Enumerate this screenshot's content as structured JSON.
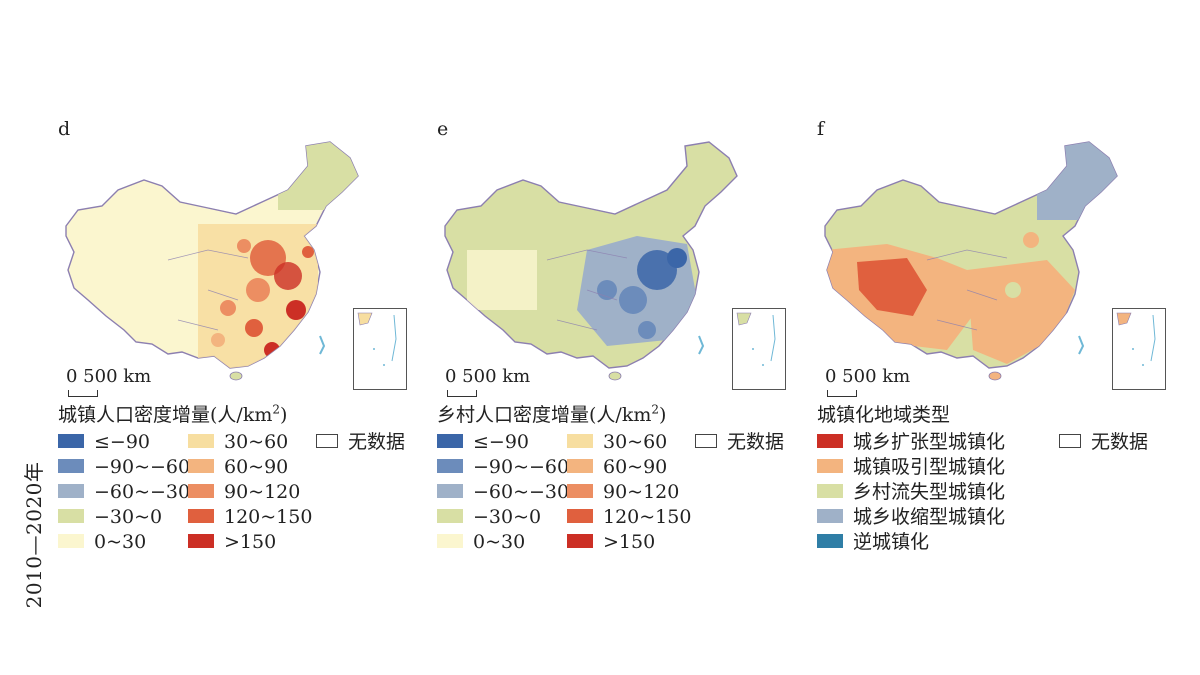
{
  "side_label": "2010—2020年",
  "scale_text": "0  500 km",
  "no_data_label": "无数据",
  "panels": [
    {
      "letter": "d",
      "legend_title_main": "城镇人口密度增量(人/km",
      "legend_title_sup": "2",
      "legend_title_close": ")",
      "legend": [
        {
          "label": "≤−90",
          "color": "#3b66a8"
        },
        {
          "label": "−90~−60",
          "color": "#6c8cbb"
        },
        {
          "label": "−60~−30",
          "color": "#9fb1c8"
        },
        {
          "label": "−30~0",
          "color": "#d8dfa4"
        },
        {
          "label": "0~30",
          "color": "#fbf6cf"
        },
        {
          "label": "30~60",
          "color": "#f7dea0"
        },
        {
          "label": "60~90",
          "color": "#f3b47f"
        },
        {
          "label": "90~120",
          "color": "#ec8e62"
        },
        {
          "label": "120~150",
          "color": "#e0603e"
        },
        {
          "label": ">150",
          "color": "#cc2f25"
        }
      ]
    },
    {
      "letter": "e",
      "legend_title_main": "乡村人口密度增量(人/km",
      "legend_title_sup": "2",
      "legend_title_close": ")",
      "legend": [
        {
          "label": "≤−90",
          "color": "#3b66a8"
        },
        {
          "label": "−90~−60",
          "color": "#6c8cbb"
        },
        {
          "label": "−60~−30",
          "color": "#9fb1c8"
        },
        {
          "label": "−30~0",
          "color": "#d8dfa4"
        },
        {
          "label": "0~30",
          "color": "#fbf6cf"
        },
        {
          "label": "30~60",
          "color": "#f7dea0"
        },
        {
          "label": "60~90",
          "color": "#f3b47f"
        },
        {
          "label": "90~120",
          "color": "#ec8e62"
        },
        {
          "label": "120~150",
          "color": "#e0603e"
        },
        {
          "label": ">150",
          "color": "#cc2f25"
        }
      ]
    },
    {
      "letter": "f",
      "legend_title_main": "城镇化地域类型",
      "legend_title_sup": "",
      "legend_title_close": "",
      "legend": [
        {
          "label": "城乡扩张型城镇化",
          "color": "#cc2f25"
        },
        {
          "label": "城镇吸引型城镇化",
          "color": "#f3b47f"
        },
        {
          "label": "乡村流失型城镇化",
          "color": "#d8dfa4"
        },
        {
          "label": "城乡收缩型城镇化",
          "color": "#9fb1c8"
        },
        {
          "label": "逆城镇化",
          "color": "#2f7ea6"
        }
      ]
    }
  ],
  "colors": {
    "border": "#8c7fb0",
    "sea": "#6fb8d6"
  }
}
